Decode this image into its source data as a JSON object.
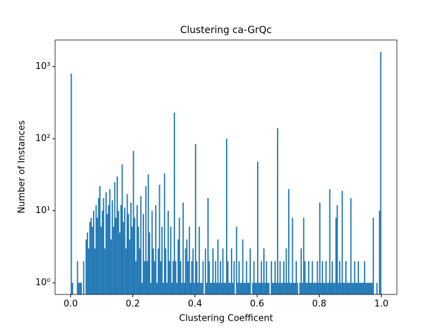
{
  "chart_data": {
    "type": "histogram",
    "title": "Clustering ca-GrQc",
    "xlabel": "Clustering Coefficent",
    "ylabel": "Number of Instances",
    "color": "#1f77b4",
    "log_y": true,
    "xlim": [
      -0.05,
      1.05
    ],
    "ylim": [
      0.69,
      2340
    ],
    "xticks": [
      {
        "value": 0,
        "label": "0.0"
      },
      {
        "value": 0.2,
        "label": "0.2"
      },
      {
        "value": 0.4,
        "label": "0.4"
      },
      {
        "value": 0.6,
        "label": "0.6"
      },
      {
        "value": 0.8,
        "label": "0.8"
      },
      {
        "value": 1,
        "label": "1.0"
      }
    ],
    "yticks": [
      {
        "value": 1,
        "label": "10⁰"
      },
      {
        "value": 10,
        "label": "10¹"
      },
      {
        "value": 100,
        "label": "10²"
      },
      {
        "value": 1000,
        "label": "10³"
      }
    ],
    "bins": [
      0,
      0.004,
      0.008,
      0.012,
      0.016,
      0.02,
      0.024,
      0.028,
      0.032,
      0.036,
      0.04,
      0.044,
      0.048,
      0.052,
      0.056,
      0.06,
      0.064,
      0.068,
      0.072,
      0.076,
      0.08,
      0.084,
      0.088,
      0.092,
      0.096,
      0.1,
      0.104,
      0.108,
      0.112,
      0.116,
      0.12,
      0.124,
      0.128,
      0.132,
      0.136,
      0.14,
      0.144,
      0.148,
      0.152,
      0.156,
      0.16,
      0.164,
      0.168,
      0.172,
      0.176,
      0.18,
      0.184,
      0.188,
      0.192,
      0.196,
      0.2,
      0.204,
      0.208,
      0.212,
      0.216,
      0.22,
      0.224,
      0.228,
      0.232,
      0.236,
      0.24,
      0.244,
      0.248,
      0.252,
      0.256,
      0.26,
      0.264,
      0.268,
      0.272,
      0.276,
      0.28,
      0.284,
      0.288,
      0.292,
      0.296,
      0.3,
      0.304,
      0.308,
      0.312,
      0.316,
      0.32,
      0.324,
      0.328,
      0.332,
      0.336,
      0.34,
      0.344,
      0.348,
      0.352,
      0.356,
      0.36,
      0.364,
      0.368,
      0.372,
      0.376,
      0.38,
      0.384,
      0.388,
      0.392,
      0.396,
      0.4,
      0.404,
      0.408,
      0.412,
      0.416,
      0.42,
      0.424,
      0.428,
      0.432,
      0.436,
      0.44,
      0.444,
      0.448,
      0.452,
      0.456,
      0.46,
      0.464,
      0.468,
      0.472,
      0.476,
      0.48,
      0.484,
      0.488,
      0.492,
      0.496,
      0.5,
      0.504,
      0.508,
      0.512,
      0.516,
      0.52,
      0.524,
      0.528,
      0.532,
      0.536,
      0.54,
      0.544,
      0.548,
      0.552,
      0.556,
      0.56,
      0.564,
      0.568,
      0.572,
      0.576,
      0.58,
      0.584,
      0.588,
      0.592,
      0.596,
      0.6,
      0.604,
      0.608,
      0.612,
      0.616,
      0.62,
      0.624,
      0.628,
      0.632,
      0.636,
      0.64,
      0.644,
      0.648,
      0.652,
      0.656,
      0.66,
      0.664,
      0.668,
      0.672,
      0.676,
      0.68,
      0.684,
      0.688,
      0.692,
      0.696,
      0.7,
      0.704,
      0.708,
      0.712,
      0.716,
      0.72,
      0.724,
      0.728,
      0.732,
      0.736,
      0.74,
      0.744,
      0.748,
      0.752,
      0.756,
      0.76,
      0.764,
      0.768,
      0.772,
      0.776,
      0.78,
      0.784,
      0.788,
      0.792,
      0.796,
      0.8,
      0.804,
      0.808,
      0.812,
      0.816,
      0.82,
      0.824,
      0.828,
      0.832,
      0.836,
      0.84,
      0.844,
      0.848,
      0.852,
      0.856,
      0.86,
      0.864,
      0.868,
      0.872,
      0.876,
      0.88,
      0.884,
      0.888,
      0.892,
      0.896,
      0.9,
      0.904,
      0.908,
      0.912,
      0.916,
      0.92,
      0.924,
      0.928,
      0.932,
      0.936,
      0.94,
      0.944,
      0.948,
      0.952,
      0.956,
      0.96,
      0.964,
      0.968,
      0.972,
      0.976,
      0.98,
      0.984,
      0.988,
      0.992,
      0.996,
      1
    ],
    "values": [
      800,
      1,
      0,
      0,
      0,
      2,
      1,
      1,
      1,
      0,
      2,
      0,
      4,
      5,
      3,
      7,
      8,
      6,
      10,
      3,
      12,
      8,
      15,
      22,
      6,
      10,
      15,
      3,
      18,
      9,
      12,
      20,
      4,
      14,
      6,
      25,
      8,
      30,
      10,
      5,
      12,
      44,
      7,
      11,
      3,
      17,
      9,
      4,
      13,
      6,
      68,
      8,
      2,
      12,
      6,
      3,
      16,
      1,
      9,
      2,
      22,
      2,
      32,
      5,
      1,
      10,
      3,
      2,
      12,
      1,
      3,
      23,
      2,
      6,
      1,
      33,
      3,
      1,
      10,
      2,
      6,
      1,
      2,
      230,
      2,
      1,
      4,
      8,
      2,
      1,
      13,
      1,
      3,
      4,
      2,
      6,
      1,
      2,
      3,
      1,
      84,
      2,
      1,
      6,
      1,
      1,
      2,
      0,
      3,
      1,
      15,
      2,
      1,
      1,
      3,
      1,
      2,
      1,
      4,
      1,
      2,
      1,
      3,
      1,
      1,
      100,
      2,
      1,
      1,
      3,
      1,
      2,
      0,
      6,
      1,
      2,
      1,
      1,
      4,
      1,
      1,
      2,
      1,
      1,
      3,
      0,
      1,
      2,
      1,
      1,
      48,
      1,
      1,
      2,
      1,
      3,
      1,
      2,
      1,
      1,
      0,
      2,
      1,
      1,
      2,
      1,
      140,
      1,
      2,
      1,
      1,
      2,
      1,
      3,
      1,
      20,
      1,
      1,
      8,
      1,
      1,
      2,
      1,
      0,
      1,
      3,
      1,
      8,
      2,
      1,
      1,
      2,
      1,
      1,
      2,
      1,
      1,
      1,
      2,
      1,
      13,
      1,
      2,
      1,
      1,
      2,
      1,
      1,
      20,
      1,
      2,
      1,
      1,
      8,
      12,
      1,
      2,
      1,
      19,
      1,
      1,
      2,
      1,
      1,
      1,
      15,
      1,
      1,
      2,
      1,
      1,
      2,
      1,
      1,
      1,
      1,
      2,
      1,
      1,
      1,
      1,
      1,
      1,
      8,
      0,
      0,
      1,
      0,
      10,
      1600
    ]
  }
}
